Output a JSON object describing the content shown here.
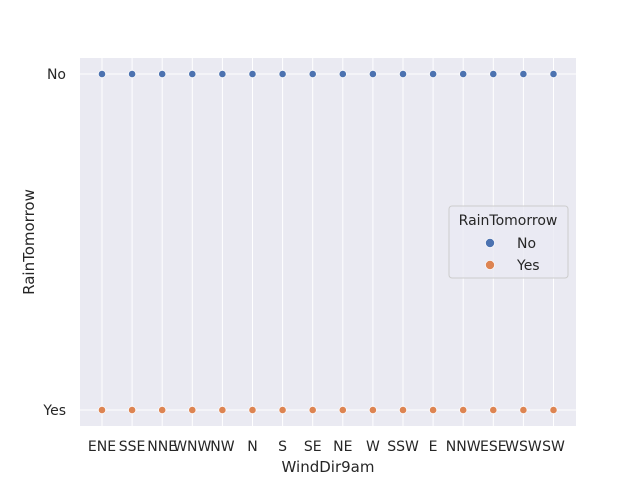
{
  "chart_data": {
    "type": "scatter",
    "xlabel": "WindDir9am",
    "ylabel": "RainTomorrow",
    "categories": [
      "ENE",
      "SSE",
      "NNE",
      "WNW",
      "NW",
      "N",
      "S",
      "SE",
      "NE",
      "W",
      "SSW",
      "E",
      "NNW",
      "ESE",
      "WSW",
      "SW"
    ],
    "y_categories": [
      "No",
      "Yes"
    ],
    "grid": true,
    "legend": {
      "title": "RainTomorrow",
      "placement": "center-right"
    },
    "series": [
      {
        "name": "No",
        "color": "#4c72b0",
        "x": [
          "ENE",
          "SSE",
          "NNE",
          "WNW",
          "NW",
          "N",
          "S",
          "SE",
          "NE",
          "W",
          "SSW",
          "E",
          "NNW",
          "ESE",
          "WSW",
          "SW"
        ],
        "y": [
          "No",
          "No",
          "No",
          "No",
          "No",
          "No",
          "No",
          "No",
          "No",
          "No",
          "No",
          "No",
          "No",
          "No",
          "No",
          "No"
        ]
      },
      {
        "name": "Yes",
        "color": "#dd8452",
        "x": [
          "ENE",
          "SSE",
          "NNE",
          "WNW",
          "NW",
          "N",
          "S",
          "SE",
          "NE",
          "W",
          "SSW",
          "E",
          "NNW",
          "ESE",
          "WSW",
          "SW"
        ],
        "y": [
          "Yes",
          "Yes",
          "Yes",
          "Yes",
          "Yes",
          "Yes",
          "Yes",
          "Yes",
          "Yes",
          "Yes",
          "Yes",
          "Yes",
          "Yes",
          "Yes",
          "Yes",
          "Yes"
        ]
      }
    ]
  },
  "colors": {
    "plot_background": "#eaeaf2",
    "grid": "#ffffff",
    "text": "#262626"
  }
}
